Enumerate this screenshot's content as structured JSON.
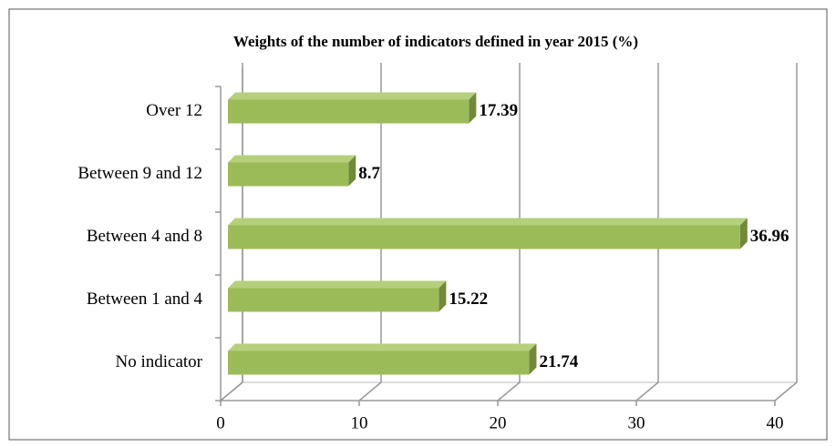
{
  "chart_data": {
    "type": "bar",
    "orientation": "horizontal",
    "title": "Weights of the number of indicators defined in year 2015 (%)",
    "categories": [
      "Over 12",
      "Between 9 and 12",
      "Between 4 and 8",
      "Between 1 and 4",
      "No indicator"
    ],
    "values": [
      17.39,
      8.7,
      36.96,
      15.22,
      21.74
    ],
    "color": "#9bbb59",
    "xlim": [
      0,
      40
    ],
    "xticks": [
      0,
      10,
      20,
      30,
      40
    ],
    "grid": true
  }
}
